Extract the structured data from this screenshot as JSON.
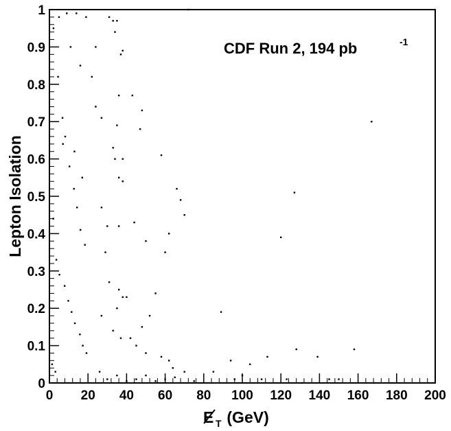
{
  "chart_data": {
    "type": "scatter",
    "xlabel_main": "E",
    "xlabel_sub": "T",
    "xlabel_unit": " (GeV)",
    "ylabel": "Lepton Isolation",
    "annotation": "CDF Run 2, 194 pb",
    "annotation_sup": "-1",
    "xlim": [
      0,
      200
    ],
    "ylim": [
      0,
      1
    ],
    "x_ticks": [
      0,
      20,
      40,
      60,
      80,
      100,
      120,
      140,
      160,
      180,
      200
    ],
    "y_ticks": [
      0,
      0.1,
      0.2,
      0.3,
      0.4,
      0.5,
      0.6,
      0.7,
      0.8,
      0.9,
      1
    ],
    "x_tick_labels": [
      "0",
      "20",
      "40",
      "60",
      "80",
      "100",
      "120",
      "140",
      "160",
      "180",
      "200"
    ],
    "y_tick_labels": [
      "0",
      "0.1",
      "0.2",
      "0.3",
      "0.4",
      "0.5",
      "0.6",
      "0.7",
      "0.8",
      "0.9",
      "1"
    ],
    "grid": false,
    "series": [
      {
        "points": [
          [
            2.1,
            0.95
          ],
          [
            4.5,
            0.82
          ],
          [
            6.8,
            0.71
          ],
          [
            8.2,
            0.66
          ],
          [
            10.4,
            0.58
          ],
          [
            12.7,
            0.52
          ],
          [
            14.3,
            0.47
          ],
          [
            16.1,
            0.41
          ],
          [
            18.4,
            0.37
          ],
          [
            3.6,
            0.33
          ],
          [
            5.2,
            0.29
          ],
          [
            7.9,
            0.26
          ],
          [
            9.8,
            0.22
          ],
          [
            11.5,
            0.19
          ],
          [
            13.2,
            0.16
          ],
          [
            15.8,
            0.13
          ],
          [
            17.3,
            0.1
          ],
          [
            19.2,
            0.08
          ],
          [
            1.4,
            0.05
          ],
          [
            3.1,
            0.03
          ],
          [
            22.0,
            0.82
          ],
          [
            24.0,
            0.9
          ],
          [
            31,
            0.98
          ],
          [
            33,
            0.97
          ],
          [
            35,
            0.97
          ],
          [
            34,
            0.94
          ],
          [
            37,
            0.88
          ],
          [
            38,
            0.89
          ],
          [
            36,
            0.77
          ],
          [
            24,
            0.74
          ],
          [
            27,
            0.71
          ],
          [
            35,
            0.69
          ],
          [
            38,
            0.6
          ],
          [
            33,
            0.63
          ],
          [
            34,
            0.6
          ],
          [
            36,
            0.55
          ],
          [
            38,
            0.54
          ],
          [
            27,
            0.47
          ],
          [
            30,
            0.42
          ],
          [
            36,
            0.42
          ],
          [
            29,
            0.35
          ],
          [
            31,
            0.27
          ],
          [
            36,
            0.25
          ],
          [
            38,
            0.23
          ],
          [
            35,
            0.2
          ],
          [
            40,
            0.23
          ],
          [
            27,
            0.18
          ],
          [
            33,
            0.14
          ],
          [
            37,
            0.12
          ],
          [
            42,
            0.12
          ],
          [
            45,
            0.1
          ],
          [
            48,
            0.15
          ],
          [
            52,
            0.18
          ],
          [
            55,
            0.24
          ],
          [
            50,
            0.08
          ],
          [
            58,
            0.07
          ],
          [
            62,
            0.06
          ],
          [
            64,
            0.04
          ],
          [
            70,
            0.03
          ],
          [
            43,
            0.77
          ],
          [
            48,
            0.73
          ],
          [
            47,
            0.68
          ],
          [
            58,
            0.61
          ],
          [
            66,
            0.52
          ],
          [
            68,
            0.49
          ],
          [
            70,
            0.45
          ],
          [
            62,
            0.4
          ],
          [
            50,
            0.38
          ],
          [
            60,
            0.35
          ],
          [
            44,
            0.43
          ],
          [
            89,
            0.19
          ],
          [
            94,
            0.06
          ],
          [
            104,
            0.05
          ],
          [
            113,
            0.07
          ],
          [
            120,
            0.39
          ],
          [
            127,
            0.51
          ],
          [
            128,
            0.09
          ],
          [
            139,
            0.07
          ],
          [
            158,
            0.09
          ],
          [
            167,
            0.7
          ],
          [
            72,
            1.0
          ],
          [
            96,
            0.01
          ],
          [
            110,
            0.01
          ],
          [
            123,
            0.01
          ],
          [
            131,
            0.0
          ],
          [
            150,
            0.01
          ],
          [
            168,
            0.0
          ],
          [
            85,
            0.03
          ],
          [
            100,
            0.02
          ],
          [
            145,
            0.01
          ],
          [
            26,
            0.03
          ],
          [
            30,
            0.01
          ],
          [
            35,
            0.02
          ],
          [
            40,
            0.005
          ],
          [
            45,
            0.01
          ],
          [
            50,
            0.02
          ],
          [
            55,
            0.005
          ],
          [
            60,
            0.01
          ],
          [
            65,
            0.015
          ],
          [
            75,
            0.005
          ],
          [
            5,
            0.98
          ],
          [
            9,
            0.99
          ],
          [
            14,
            0.99
          ],
          [
            19,
            0.98
          ],
          [
            11,
            0.9
          ],
          [
            16,
            0.85
          ],
          [
            7,
            0.64
          ],
          [
            13,
            0.62
          ],
          [
            17,
            0.55
          ],
          [
            2,
            0.44
          ]
        ]
      }
    ]
  }
}
